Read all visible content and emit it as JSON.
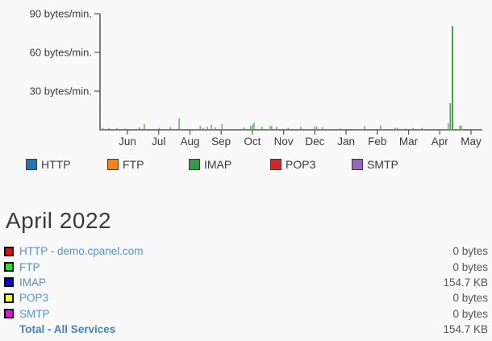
{
  "page": {
    "background": "#f9f9f9",
    "link_color": "#5094d4",
    "total_link_color": "#4183c4",
    "text_color": "#3a3a3a",
    "value_color": "#555555"
  },
  "chart_data": {
    "type": "bar",
    "title": "",
    "ylabel": "bytes/min.",
    "ylim": [
      0,
      90
    ],
    "grid": false,
    "axis_color": "#555555",
    "bar_color": "#3fa73f",
    "series_name": "IMAP",
    "y_ticks": [
      {
        "value": 90,
        "label": "90 bytes/min."
      },
      {
        "value": 60,
        "label": "60 bytes/min."
      },
      {
        "value": 30,
        "label": "30 bytes/min."
      }
    ],
    "x_tick_labels": [
      "Jun",
      "Jul",
      "Aug",
      "Sep",
      "Oct",
      "Nov",
      "Dec",
      "Jan",
      "Feb",
      "Mar",
      "Apr",
      "May"
    ],
    "points": [
      {
        "x_frac": 0.008,
        "bytes_per_min": 1.5
      },
      {
        "x_frac": 0.023,
        "bytes_per_min": 1.5
      },
      {
        "x_frac": 0.044,
        "bytes_per_min": 1.5
      },
      {
        "x_frac": 0.065,
        "bytes_per_min": 1.0
      },
      {
        "x_frac": 0.103,
        "bytes_per_min": 2.0
      },
      {
        "x_frac": 0.116,
        "bytes_per_min": 4.5
      },
      {
        "x_frac": 0.154,
        "bytes_per_min": 1.5
      },
      {
        "x_frac": 0.184,
        "bytes_per_min": 2.0
      },
      {
        "x_frac": 0.207,
        "bytes_per_min": 9.0
      },
      {
        "x_frac": 0.262,
        "bytes_per_min": 3.0
      },
      {
        "x_frac": 0.27,
        "bytes_per_min": 1.5
      },
      {
        "x_frac": 0.281,
        "bytes_per_min": 2.5
      },
      {
        "x_frac": 0.291,
        "bytes_per_min": 4.0
      },
      {
        "x_frac": 0.302,
        "bytes_per_min": 2.0
      },
      {
        "x_frac": 0.319,
        "bytes_per_min": 4.5
      },
      {
        "x_frac": 0.376,
        "bytes_per_min": 1.7
      },
      {
        "x_frac": 0.394,
        "bytes_per_min": 3.0
      },
      {
        "x_frac": 0.399,
        "bytes_per_min": 4.0
      },
      {
        "x_frac": 0.403,
        "bytes_per_min": 5.8
      },
      {
        "x_frac": 0.424,
        "bytes_per_min": 2.5
      },
      {
        "x_frac": 0.445,
        "bytes_per_min": 3.0
      },
      {
        "x_frac": 0.449,
        "bytes_per_min": 3.0
      },
      {
        "x_frac": 0.462,
        "bytes_per_min": 2.5
      },
      {
        "x_frac": 0.492,
        "bytes_per_min": 1.5
      },
      {
        "x_frac": 0.525,
        "bytes_per_min": 2.5
      },
      {
        "x_frac": 0.561,
        "bytes_per_min": 2.5
      },
      {
        "x_frac": 0.567,
        "bytes_per_min": 2.5
      },
      {
        "x_frac": 0.582,
        "bytes_per_min": 2.0
      },
      {
        "x_frac": 0.629,
        "bytes_per_min": 1.0
      },
      {
        "x_frac": 0.692,
        "bytes_per_min": 3.0
      },
      {
        "x_frac": 0.734,
        "bytes_per_min": 3.5
      },
      {
        "x_frac": 0.772,
        "bytes_per_min": 1.5
      },
      {
        "x_frac": 0.778,
        "bytes_per_min": 1.5
      },
      {
        "x_frac": 0.8,
        "bytes_per_min": 1.0
      },
      {
        "x_frac": 0.819,
        "bytes_per_min": 1.5
      },
      {
        "x_frac": 0.842,
        "bytes_per_min": 1.5
      },
      {
        "x_frac": 0.911,
        "bytes_per_min": 5.0
      },
      {
        "x_frac": 0.916,
        "bytes_per_min": 20.5,
        "w": 1.5
      },
      {
        "x_frac": 0.922,
        "bytes_per_min": 80.5,
        "w": 2
      },
      {
        "x_frac": 0.941,
        "bytes_per_min": 3.0
      },
      {
        "x_frac": 0.945,
        "bytes_per_min": 3.5
      }
    ]
  },
  "legend": {
    "items": [
      {
        "label": "HTTP",
        "color": "#1f77b4"
      },
      {
        "label": "FTP",
        "color": "#ff7f0e"
      },
      {
        "label": "IMAP",
        "color": "#2f9e3f"
      },
      {
        "label": "POP3",
        "color": "#d62728"
      },
      {
        "label": "SMTP",
        "color": "#9467bd"
      }
    ]
  },
  "summary": {
    "title": "April 2022",
    "rows": [
      {
        "label": "HTTP - demo.cpanel.com",
        "swatch": "#ff0000",
        "value": "0 bytes",
        "bold": false
      },
      {
        "label": "FTP",
        "swatch": "#00ff00",
        "value": "0 bytes",
        "bold": false
      },
      {
        "label": "IMAP",
        "swatch": "#0000ff",
        "value": "154.7 KB",
        "bold": false
      },
      {
        "label": "POP3",
        "swatch": "#ffff00",
        "value": "0 bytes",
        "bold": false
      },
      {
        "label": "SMTP",
        "swatch": "#ff00ff",
        "value": "0 bytes",
        "bold": false
      },
      {
        "label": "Total - All Services",
        "swatch": null,
        "value": "154.7 KB",
        "bold": true
      }
    ]
  }
}
